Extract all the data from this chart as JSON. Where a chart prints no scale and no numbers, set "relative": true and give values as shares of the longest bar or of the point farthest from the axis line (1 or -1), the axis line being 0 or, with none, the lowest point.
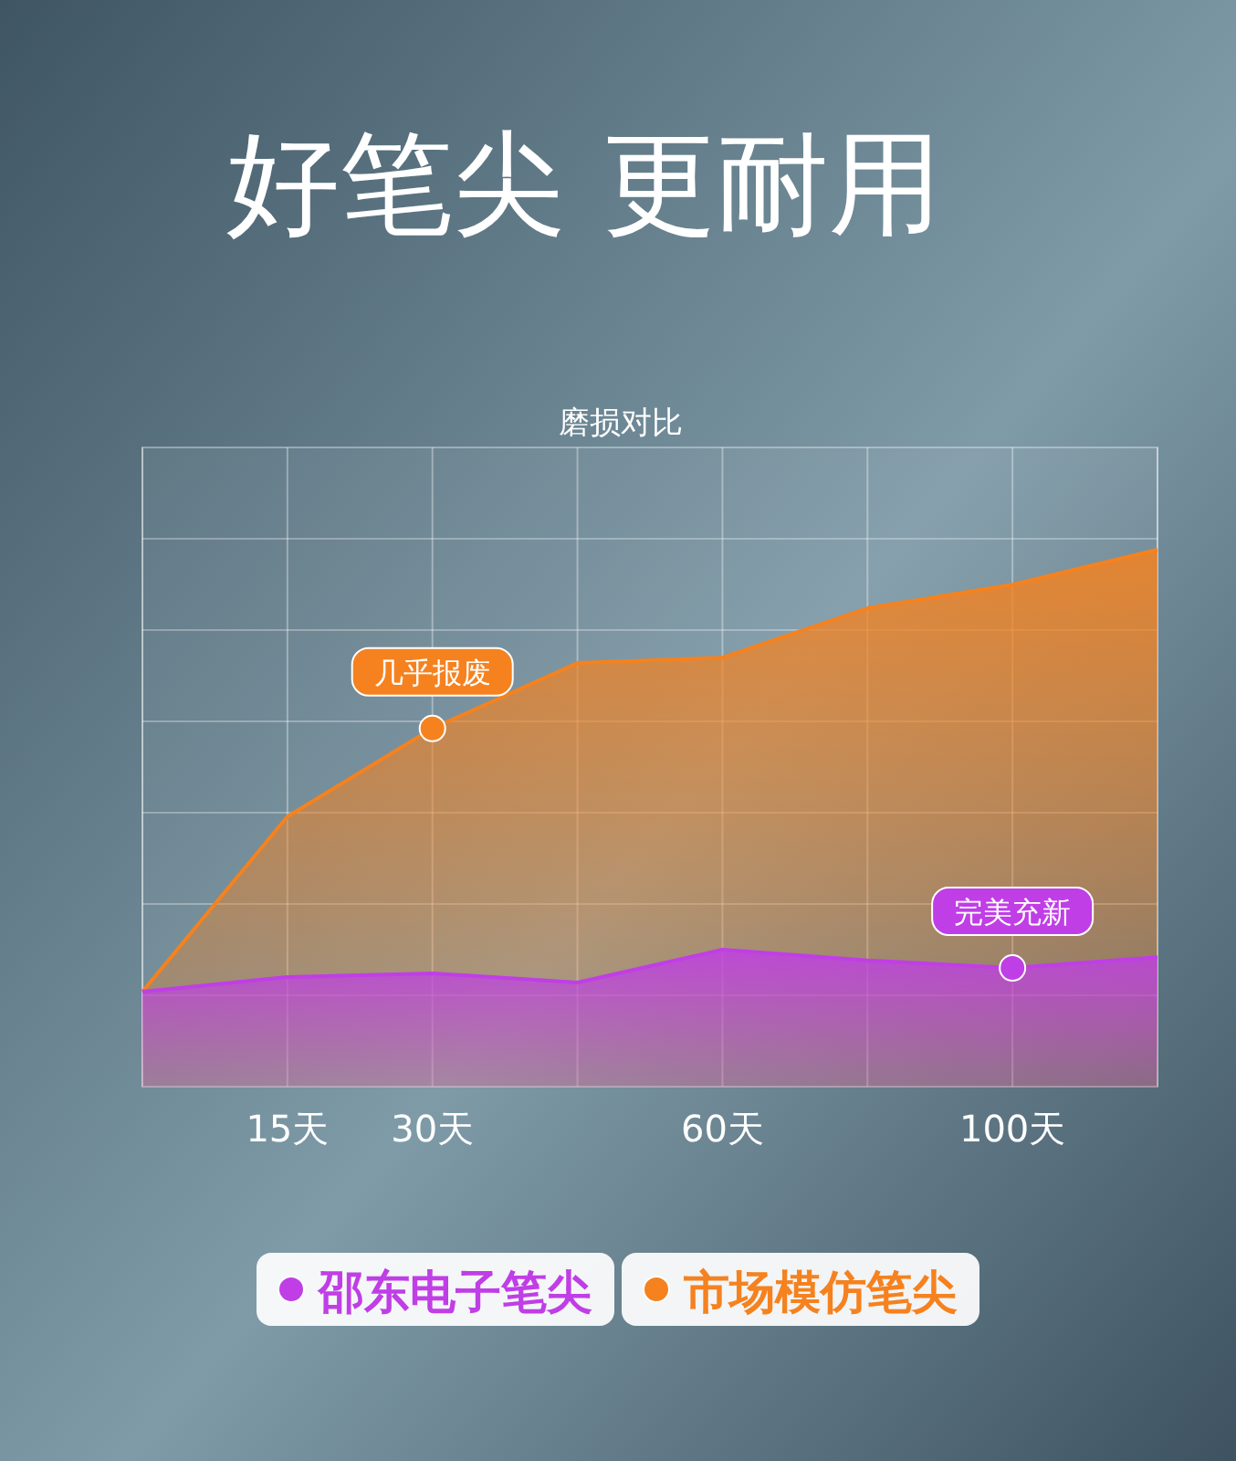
{
  "chart_data": {
    "type": "area",
    "title": "好笔尖  更耐用",
    "subtitle": "磨损对比",
    "relative": true,
    "grid": true,
    "legend": "bottom",
    "categories": [
      null,
      "15天",
      "30天",
      null,
      "60天",
      null,
      "100天",
      null
    ],
    "series": [
      {
        "name": "邵东电子笔尖",
        "color": "#c03ee6",
        "values": [
          0.177,
          0.204,
          0.211,
          0.194,
          0.255,
          0.235,
          0.221,
          0.241
        ]
      },
      {
        "name": "市场模仿笔尖",
        "color": "#f5821f",
        "values": [
          0.177,
          0.503,
          0.667,
          0.789,
          0.799,
          0.891,
          0.935,
          1
        ]
      }
    ],
    "annotations": [
      {
        "text": "几乎报废",
        "x": "30天",
        "y": 0.667
      },
      {
        "text": "完美充新",
        "x": "100天",
        "y": 0.221
      }
    ]
  }
}
